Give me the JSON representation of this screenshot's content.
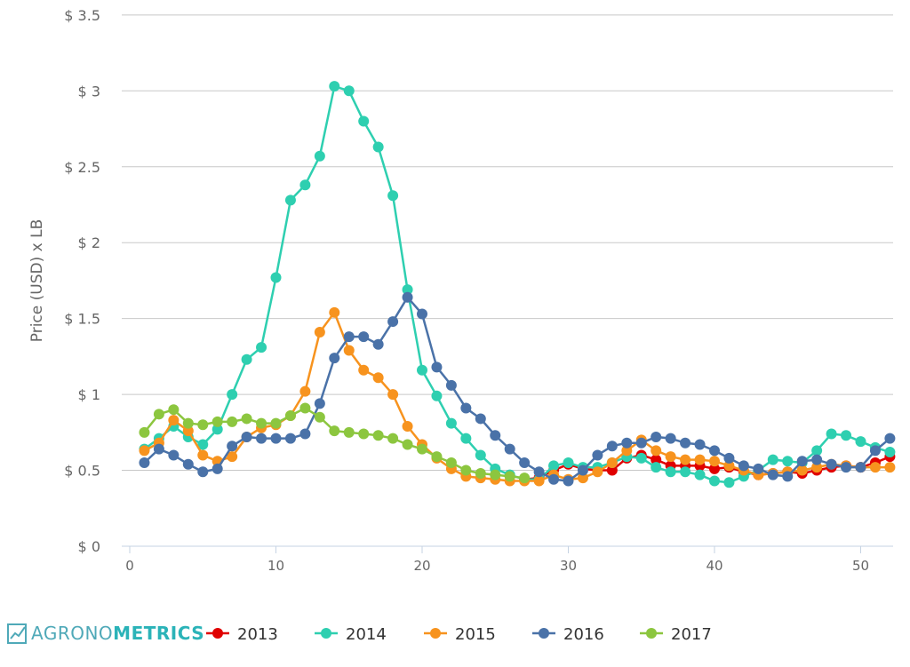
{
  "chart_data": {
    "type": "line",
    "title": "",
    "xlabel": "",
    "ylabel": "Price (USD) x LB",
    "xlim": [
      0,
      52
    ],
    "ylim": [
      0,
      3.5
    ],
    "grid": true,
    "legend_position": "bottom",
    "x_ticks": [
      "0",
      "10",
      "20",
      "30",
      "40",
      "50"
    ],
    "y_ticks": [
      "$ 0",
      "$ 0.5",
      "$ 1",
      "$ 1.5",
      "$ 2",
      "$ 2.5",
      "$ 3",
      "$ 3.5"
    ],
    "series": [
      {
        "name": "2013",
        "color": "#e00000",
        "x": [
          27,
          28,
          29,
          30,
          31,
          32,
          33,
          34,
          35,
          36,
          37,
          38,
          39,
          40,
          41,
          42,
          43,
          44,
          45,
          46,
          47,
          48,
          49,
          50,
          51,
          52
        ],
        "values": [
          0.44,
          0.45,
          0.5,
          0.54,
          0.51,
          0.5,
          0.5,
          0.58,
          0.6,
          0.57,
          0.53,
          0.53,
          0.53,
          0.51,
          0.52,
          0.49,
          0.47,
          0.48,
          0.49,
          0.48,
          0.5,
          0.52,
          0.53,
          0.52,
          0.55,
          0.59
        ]
      },
      {
        "name": "2014",
        "color": "#2ecfb0",
        "x": [
          1,
          2,
          3,
          4,
          5,
          6,
          7,
          8,
          9,
          10,
          11,
          12,
          13,
          14,
          15,
          16,
          17,
          18,
          19,
          20,
          21,
          22,
          23,
          24,
          25,
          26,
          27,
          28,
          29,
          30,
          31,
          32,
          33,
          34,
          35,
          36,
          37,
          38,
          39,
          40,
          41,
          42,
          43,
          44,
          45,
          46,
          47,
          48,
          49,
          50,
          51,
          52
        ],
        "values": [
          0.64,
          0.71,
          0.79,
          0.72,
          0.67,
          0.77,
          1.0,
          1.23,
          1.31,
          1.77,
          2.28,
          2.38,
          2.57,
          3.03,
          3.0,
          2.8,
          2.63,
          2.31,
          1.69,
          1.16,
          0.99,
          0.81,
          0.71,
          0.6,
          0.51,
          0.47,
          0.44,
          0.44,
          0.53,
          0.55,
          0.52,
          0.52,
          0.55,
          0.59,
          0.58,
          0.52,
          0.49,
          0.49,
          0.47,
          0.43,
          0.42,
          0.46,
          0.5,
          0.57,
          0.56,
          0.55,
          0.63,
          0.74,
          0.73,
          0.69,
          0.65,
          0.62
        ]
      },
      {
        "name": "2015",
        "color": "#f7931e",
        "x": [
          1,
          2,
          3,
          4,
          5,
          6,
          7,
          8,
          9,
          10,
          11,
          12,
          13,
          14,
          15,
          16,
          17,
          18,
          19,
          20,
          21,
          22,
          23,
          24,
          25,
          26,
          27,
          28,
          29,
          30,
          31,
          32,
          33,
          34,
          35,
          36,
          37,
          38,
          39,
          40,
          41,
          42,
          43,
          44,
          45,
          46,
          47,
          48,
          49,
          50,
          51,
          52
        ],
        "values": [
          0.63,
          0.68,
          0.83,
          0.76,
          0.6,
          0.56,
          0.59,
          0.72,
          0.78,
          0.8,
          0.86,
          1.02,
          1.41,
          1.54,
          1.29,
          1.16,
          1.11,
          1.0,
          0.79,
          0.67,
          0.58,
          0.51,
          0.46,
          0.45,
          0.44,
          0.43,
          0.43,
          0.43,
          0.47,
          0.44,
          0.45,
          0.49,
          0.55,
          0.63,
          0.7,
          0.63,
          0.59,
          0.57,
          0.57,
          0.56,
          0.53,
          0.5,
          0.47,
          0.48,
          0.49,
          0.5,
          0.52,
          0.54,
          0.53,
          0.52,
          0.52,
          0.52
        ]
      },
      {
        "name": "2016",
        "color": "#4a72a8",
        "x": [
          1,
          2,
          3,
          4,
          5,
          6,
          7,
          8,
          9,
          10,
          11,
          12,
          13,
          14,
          15,
          16,
          17,
          18,
          19,
          20,
          21,
          22,
          23,
          24,
          25,
          26,
          27,
          28,
          29,
          30,
          31,
          32,
          33,
          34,
          35,
          36,
          37,
          38,
          39,
          40,
          41,
          42,
          43,
          44,
          45,
          46,
          47,
          48,
          49,
          50,
          51,
          52
        ],
        "values": [
          0.55,
          0.64,
          0.6,
          0.54,
          0.49,
          0.51,
          0.66,
          0.72,
          0.71,
          0.71,
          0.71,
          0.74,
          0.94,
          1.24,
          1.38,
          1.38,
          1.33,
          1.48,
          1.64,
          1.53,
          1.18,
          1.06,
          0.91,
          0.84,
          0.73,
          0.64,
          0.55,
          0.49,
          0.44,
          0.43,
          0.5,
          0.6,
          0.66,
          0.68,
          0.68,
          0.72,
          0.71,
          0.68,
          0.67,
          0.63,
          0.58,
          0.53,
          0.51,
          0.47,
          0.46,
          0.56,
          0.57,
          0.54,
          0.52,
          0.52,
          0.63,
          0.71
        ]
      },
      {
        "name": "2017",
        "color": "#8cc63f",
        "x": [
          1,
          2,
          3,
          4,
          5,
          6,
          7,
          8,
          9,
          10,
          11,
          12,
          13,
          14,
          15,
          16,
          17,
          18,
          19,
          20,
          21,
          22,
          23,
          24,
          25,
          26,
          27
        ],
        "values": [
          0.75,
          0.87,
          0.9,
          0.81,
          0.8,
          0.82,
          0.82,
          0.84,
          0.81,
          0.81,
          0.86,
          0.91,
          0.85,
          0.76,
          0.75,
          0.74,
          0.73,
          0.71,
          0.67,
          0.64,
          0.59,
          0.55,
          0.5,
          0.48,
          0.47,
          0.46,
          0.45
        ]
      }
    ]
  },
  "logo": {
    "part1": "AGRONO",
    "part2": "METRICS",
    "icon": "chart-line-icon"
  }
}
